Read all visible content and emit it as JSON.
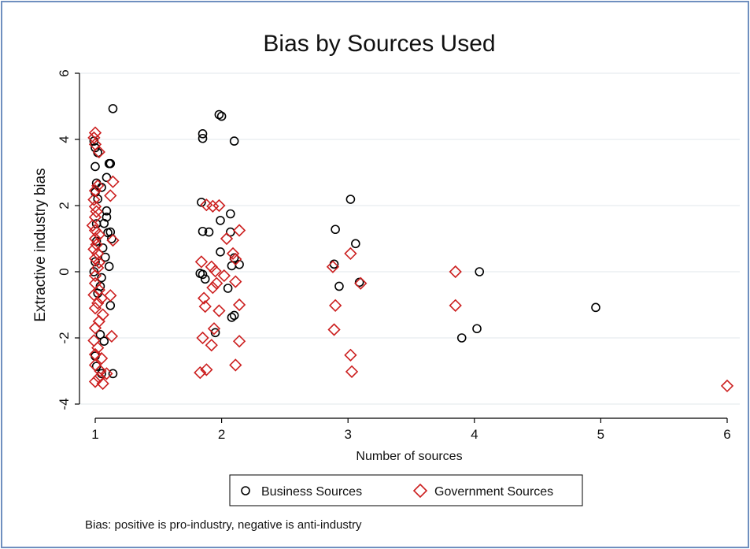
{
  "chart_data": {
    "type": "scatter",
    "title": "Bias by Sources Used",
    "xlabel": "Number of sources",
    "ylabel": "Extractive industry bias",
    "xlim": [
      0.9,
      6.1
    ],
    "ylim": [
      -4.5,
      6.4
    ],
    "xticks": [
      1,
      2,
      3,
      4,
      5,
      6
    ],
    "yticks": [
      -4,
      -2,
      0,
      2,
      4,
      6
    ],
    "grid": true,
    "legend_position": "bottom",
    "note": "Bias: positive is pro-industry, negative is anti-industry",
    "series": [
      {
        "name": "Business Sources",
        "marker": "circle",
        "color": "#000000",
        "points": [
          [
            1.14,
            4.93
          ],
          [
            0.99,
            3.95
          ],
          [
            1.0,
            3.75
          ],
          [
            1.02,
            3.6
          ],
          [
            1.11,
            3.27
          ],
          [
            1.12,
            3.27
          ],
          [
            1.0,
            3.18
          ],
          [
            1.09,
            2.85
          ],
          [
            1.01,
            2.68
          ],
          [
            1.05,
            2.55
          ],
          [
            1.0,
            2.4
          ],
          [
            1.02,
            2.2
          ],
          [
            1.09,
            1.84
          ],
          [
            1.09,
            1.65
          ],
          [
            1.07,
            1.46
          ],
          [
            1.01,
            1.45
          ],
          [
            1.12,
            1.2
          ],
          [
            1.1,
            1.18
          ],
          [
            1.13,
            1.0
          ],
          [
            1.01,
            0.92
          ],
          [
            1.06,
            0.72
          ],
          [
            1.08,
            0.44
          ],
          [
            1.0,
            0.3
          ],
          [
            1.11,
            0.16
          ],
          [
            0.99,
            0.0
          ],
          [
            1.05,
            -0.18
          ],
          [
            1.04,
            -0.44
          ],
          [
            1.02,
            -0.65
          ],
          [
            1.12,
            -1.02
          ],
          [
            1.04,
            -1.9
          ],
          [
            1.07,
            -2.1
          ],
          [
            1.0,
            -2.55
          ],
          [
            1.01,
            -2.86
          ],
          [
            1.05,
            -3.08
          ],
          [
            1.14,
            -3.08
          ],
          [
            1.98,
            4.75
          ],
          [
            2.0,
            4.7
          ],
          [
            1.85,
            4.17
          ],
          [
            1.85,
            4.03
          ],
          [
            2.1,
            3.95
          ],
          [
            1.84,
            2.1
          ],
          [
            2.07,
            1.75
          ],
          [
            1.99,
            1.55
          ],
          [
            1.85,
            1.22
          ],
          [
            1.9,
            1.2
          ],
          [
            2.07,
            1.2
          ],
          [
            1.99,
            0.6
          ],
          [
            2.1,
            0.42
          ],
          [
            2.14,
            0.22
          ],
          [
            2.08,
            0.18
          ],
          [
            1.83,
            -0.05
          ],
          [
            1.85,
            -0.08
          ],
          [
            1.87,
            -0.22
          ],
          [
            2.05,
            -0.5
          ],
          [
            2.1,
            -1.32
          ],
          [
            2.08,
            -1.38
          ],
          [
            1.95,
            -1.84
          ],
          [
            3.02,
            2.19
          ],
          [
            2.9,
            1.28
          ],
          [
            3.06,
            0.85
          ],
          [
            2.89,
            0.23
          ],
          [
            3.09,
            -0.32
          ],
          [
            2.93,
            -0.44
          ],
          [
            4.04,
            0.0
          ],
          [
            4.02,
            -1.72
          ],
          [
            3.9,
            -2.0
          ],
          [
            4.96,
            -1.08
          ]
        ]
      },
      {
        "name": "Government Sources",
        "marker": "diamond",
        "color": "#cc1f1f",
        "points": [
          [
            1.0,
            4.2
          ],
          [
            0.99,
            4.05
          ],
          [
            1.0,
            3.85
          ],
          [
            1.03,
            3.62
          ],
          [
            1.14,
            2.72
          ],
          [
            1.02,
            2.6
          ],
          [
            1.0,
            2.45
          ],
          [
            1.12,
            2.3
          ],
          [
            0.99,
            2.18
          ],
          [
            1.0,
            1.97
          ],
          [
            1.01,
            1.82
          ],
          [
            1.0,
            1.65
          ],
          [
            0.98,
            1.4
          ],
          [
            1.0,
            1.25
          ],
          [
            1.03,
            1.12
          ],
          [
            1.0,
            1.0
          ],
          [
            1.14,
            0.95
          ],
          [
            1.01,
            0.82
          ],
          [
            0.99,
            0.68
          ],
          [
            1.02,
            0.55
          ],
          [
            1.0,
            0.4
          ],
          [
            1.03,
            0.28
          ],
          [
            1.02,
            0.12
          ],
          [
            1.0,
            -0.12
          ],
          [
            1.0,
            -0.35
          ],
          [
            1.03,
            -0.55
          ],
          [
            0.99,
            -0.7
          ],
          [
            1.05,
            -0.8
          ],
          [
            1.12,
            -0.72
          ],
          [
            1.02,
            -0.95
          ],
          [
            1.0,
            -1.1
          ],
          [
            1.06,
            -1.3
          ],
          [
            1.03,
            -1.5
          ],
          [
            1.0,
            -1.7
          ],
          [
            1.13,
            -1.95
          ],
          [
            0.99,
            -2.08
          ],
          [
            1.02,
            -2.3
          ],
          [
            1.0,
            -2.5
          ],
          [
            1.05,
            -2.62
          ],
          [
            1.0,
            -2.82
          ],
          [
            1.04,
            -3.0
          ],
          [
            1.09,
            -3.08
          ],
          [
            1.03,
            -3.2
          ],
          [
            1.0,
            -3.32
          ],
          [
            1.06,
            -3.38
          ],
          [
            1.88,
            2.02
          ],
          [
            1.98,
            2.0
          ],
          [
            1.93,
            1.98
          ],
          [
            2.14,
            1.25
          ],
          [
            2.04,
            1.0
          ],
          [
            2.09,
            0.55
          ],
          [
            2.11,
            0.38
          ],
          [
            1.84,
            0.3
          ],
          [
            1.92,
            0.15
          ],
          [
            1.95,
            0.02
          ],
          [
            2.02,
            -0.12
          ],
          [
            2.11,
            -0.3
          ],
          [
            1.96,
            -0.35
          ],
          [
            1.93,
            -0.48
          ],
          [
            1.86,
            -0.8
          ],
          [
            2.14,
            -1.0
          ],
          [
            1.87,
            -1.05
          ],
          [
            1.98,
            -1.18
          ],
          [
            1.94,
            -1.72
          ],
          [
            1.85,
            -2.0
          ],
          [
            2.14,
            -2.1
          ],
          [
            1.92,
            -2.22
          ],
          [
            2.11,
            -2.82
          ],
          [
            1.88,
            -2.96
          ],
          [
            1.83,
            -3.05
          ],
          [
            3.02,
            0.55
          ],
          [
            2.88,
            0.15
          ],
          [
            3.1,
            -0.35
          ],
          [
            2.9,
            -1.02
          ],
          [
            2.89,
            -1.75
          ],
          [
            3.02,
            -2.52
          ],
          [
            3.03,
            -3.02
          ],
          [
            3.85,
            0.0
          ],
          [
            3.85,
            -1.02
          ],
          [
            6.0,
            -3.45
          ]
        ]
      }
    ]
  }
}
